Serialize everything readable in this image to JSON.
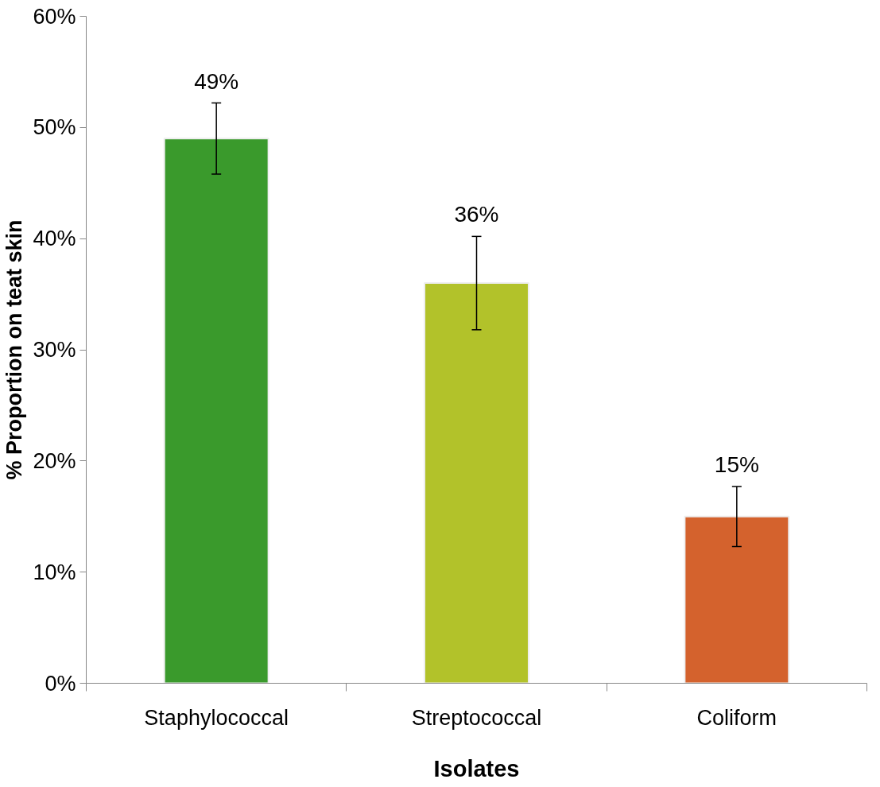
{
  "chart_data": {
    "type": "bar",
    "xlabel": "Isolates",
    "ylabel": "% Proportion on teat skin",
    "categories": [
      "Staphylococcal",
      "Streptococcal",
      "Coliform"
    ],
    "values": [
      49,
      36,
      15
    ],
    "colors": [
      "#3a9a2c",
      "#b2c22a",
      "#d4622d"
    ],
    "errors": [
      3.2,
      4.2,
      2.7
    ],
    "value_labels": [
      "49%",
      "36%",
      "15%"
    ],
    "ylim": [
      0,
      60
    ],
    "yticks": [
      {
        "value": 0,
        "label": "0%"
      },
      {
        "value": 10,
        "label": "10%"
      },
      {
        "value": 20,
        "label": "20%"
      },
      {
        "value": 30,
        "label": "30%"
      },
      {
        "value": 40,
        "label": "40%"
      },
      {
        "value": 50,
        "label": "50%"
      },
      {
        "value": 60,
        "label": "60%"
      }
    ],
    "grid": false
  }
}
